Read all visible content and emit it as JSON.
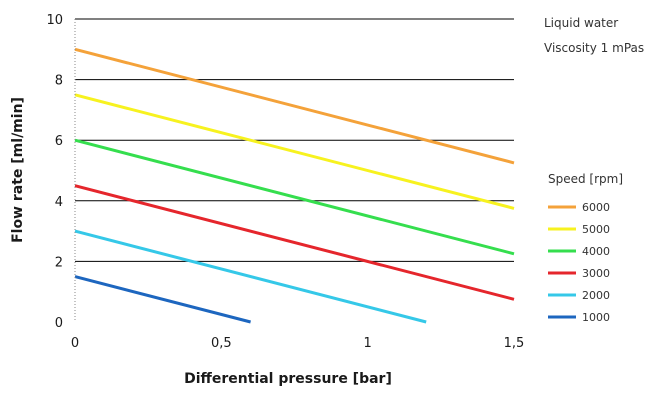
{
  "chart_data": {
    "type": "line",
    "xlabel": "Differential pressure [bar]",
    "ylabel": "Flow rate [ml/min]",
    "xlim": [
      0,
      1.5
    ],
    "ylim": [
      0,
      10
    ],
    "x_ticks": [
      0,
      0.5,
      1,
      1.5
    ],
    "x_tick_labels": [
      "0",
      "0,5",
      "1",
      "1,5"
    ],
    "y_ticks": [
      0,
      2,
      4,
      6,
      8,
      10
    ],
    "y_tick_labels": [
      "0",
      "2",
      "4",
      "6",
      "8",
      "10"
    ],
    "grid": "horizontal",
    "annotations": [
      "Liquid water",
      "Viscosity 1 mPas"
    ],
    "legend_title": "Speed [rpm]",
    "legend_position": "right",
    "series": [
      {
        "name": "6000",
        "color": "#f4a23a",
        "x": [
          0,
          1.5
        ],
        "y": [
          9.0,
          5.25
        ]
      },
      {
        "name": "5000",
        "color": "#f7f21f",
        "x": [
          0,
          1.5
        ],
        "y": [
          7.5,
          3.75
        ]
      },
      {
        "name": "4000",
        "color": "#35de4e",
        "x": [
          0,
          1.5
        ],
        "y": [
          6.0,
          2.25
        ]
      },
      {
        "name": "3000",
        "color": "#e5262c",
        "x": [
          0,
          1.5
        ],
        "y": [
          4.5,
          0.75
        ]
      },
      {
        "name": "2000",
        "color": "#35c8e8",
        "x": [
          0,
          1.2
        ],
        "y": [
          3.0,
          0.0
        ]
      },
      {
        "name": "1000",
        "color": "#1d66bf",
        "x": [
          0,
          0.6
        ],
        "y": [
          1.5,
          0.0
        ]
      }
    ]
  }
}
